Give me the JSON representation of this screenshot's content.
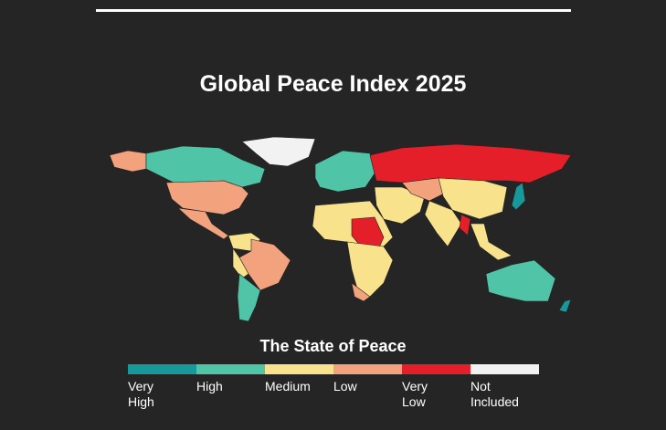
{
  "title": "Global Peace Index 2025",
  "legend": {
    "title": "The State of Peace",
    "items": [
      {
        "label": "Very High",
        "color": "#17999b"
      },
      {
        "label": "High",
        "color": "#4fc4a7"
      },
      {
        "label": "Medium",
        "color": "#f8e28c"
      },
      {
        "label": "Low",
        "color": "#f2a27c"
      },
      {
        "label": "Very Low",
        "color": "#e51f2a"
      },
      {
        "label": "Not Included",
        "color": "#f2f2f2"
      }
    ]
  }
}
